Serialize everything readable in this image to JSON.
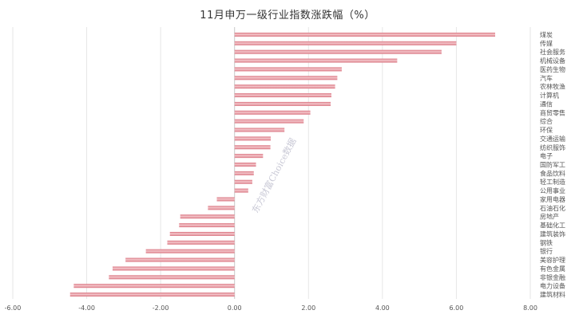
{
  "chart_data": {
    "type": "bar",
    "orientation": "horizontal",
    "title": "11月申万一级行业指数涨跌幅（%）",
    "xlim": [
      -6,
      8
    ],
    "x_ticks": [
      "-6.00",
      "-4.00",
      "-2.00",
      "0.00",
      "2.00",
      "4.00",
      "6.00",
      "8.00"
    ],
    "grid": "vertical",
    "categories": [
      "煤炭",
      "传媒",
      "社会服务",
      "机械设备",
      "医药生物",
      "汽车",
      "农林牧渔",
      "计算机",
      "通信",
      "商贸零售",
      "综合",
      "环保",
      "交通运输",
      "纺织服饰",
      "电子",
      "国防军工",
      "食品饮料",
      "轻工制造",
      "公用事业",
      "家用电器",
      "石油石化",
      "房地产",
      "基础化工",
      "建筑装饰",
      "钢铁",
      "银行",
      "美容护理",
      "有色金属",
      "非银金融",
      "电力设备",
      "建筑材料"
    ],
    "values": [
      7.05,
      6.0,
      5.6,
      4.4,
      2.9,
      2.78,
      2.72,
      2.62,
      2.6,
      2.05,
      1.87,
      1.35,
      0.98,
      0.97,
      0.77,
      0.58,
      0.52,
      0.48,
      0.37,
      -0.48,
      -0.72,
      -1.47,
      -1.5,
      -1.75,
      -1.82,
      -2.4,
      -2.95,
      -3.3,
      -3.4,
      -4.35,
      -4.45
    ],
    "bar_color": "#d9737f",
    "bar_highlight": "#f4c7cc"
  },
  "watermark": "东方财富Choice数据"
}
